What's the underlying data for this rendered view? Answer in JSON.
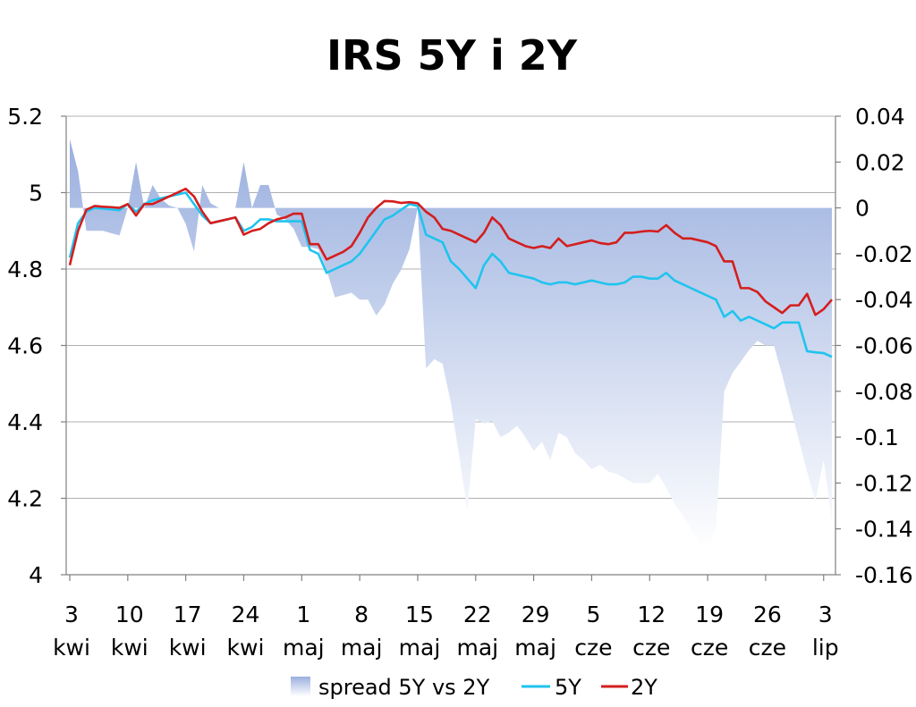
{
  "chart_data": {
    "type": "line",
    "title": "IRS 5Y i 2Y",
    "xlabel": "",
    "ylabel": "",
    "y_left": {
      "min": 4.0,
      "max": 5.2,
      "ticks": [
        "5.2",
        "5",
        "4.8",
        "4.6",
        "4.4",
        "4.2",
        "4"
      ]
    },
    "y_right": {
      "min": -0.16,
      "max": 0.04,
      "ticks": [
        "0.04",
        "0.02",
        "0",
        "-0.02",
        "-0.04",
        "-0.06",
        "-0.08",
        "-0.1",
        "-0.12",
        "-0.14",
        "-0.16"
      ]
    },
    "grid": true,
    "x_ticks": [
      {
        "day": 0,
        "top": "3",
        "bottom": "kwi"
      },
      {
        "day": 7,
        "top": "10",
        "bottom": "kwi"
      },
      {
        "day": 14,
        "top": "17",
        "bottom": "kwi"
      },
      {
        "day": 21,
        "top": "24",
        "bottom": "kwi"
      },
      {
        "day": 28,
        "top": "1",
        "bottom": "maj"
      },
      {
        "day": 35,
        "top": "8",
        "bottom": "maj"
      },
      {
        "day": 42,
        "top": "15",
        "bottom": "maj"
      },
      {
        "day": 49,
        "top": "22",
        "bottom": "maj"
      },
      {
        "day": 56,
        "top": "29",
        "bottom": "maj"
      },
      {
        "day": 63,
        "top": "5",
        "bottom": "cze"
      },
      {
        "day": 70,
        "top": "12",
        "bottom": "cze"
      },
      {
        "day": 77,
        "top": "19",
        "bottom": "cze"
      },
      {
        "day": 84,
        "top": "26",
        "bottom": "cze"
      },
      {
        "day": 91,
        "top": "3",
        "bottom": "lip"
      }
    ],
    "x_range": [
      0,
      92
    ],
    "series": [
      {
        "name": "spread 5Y vs 2Y",
        "axis": "right",
        "kind": "area",
        "color": "#9fb3e0",
        "x": [
          0,
          1,
          2,
          3,
          4,
          5,
          6,
          7,
          8,
          9,
          10,
          11,
          12,
          13,
          14,
          15,
          16,
          17,
          18,
          19,
          20,
          21,
          22,
          23,
          24,
          25,
          26,
          27,
          28,
          29,
          30,
          31,
          32,
          33,
          34,
          35,
          36,
          37,
          38,
          39,
          40,
          41,
          42,
          43,
          44,
          45,
          46,
          47,
          48,
          49,
          50,
          51,
          52,
          53,
          54,
          55,
          56,
          57,
          58,
          59,
          60,
          61,
          62,
          63,
          64,
          65,
          66,
          67,
          68,
          69,
          70,
          71,
          72,
          73,
          74,
          75,
          76,
          77,
          78,
          79,
          80,
          81,
          82,
          83,
          84,
          85,
          86,
          87,
          88,
          89,
          90,
          91,
          92
        ],
        "values": [
          0.03,
          0.016,
          -0.01,
          -0.01,
          -0.01,
          -0.011,
          -0.012,
          0.0,
          0.02,
          0.0,
          0.01,
          0.004,
          0.001,
          0.0,
          -0.007,
          -0.019,
          0.01,
          0.002,
          0.0,
          0.0,
          0.0,
          0.02,
          0.0,
          0.01,
          0.01,
          -0.003,
          -0.005,
          -0.009,
          -0.017,
          -0.017,
          -0.018,
          -0.027,
          -0.039,
          -0.038,
          -0.037,
          -0.04,
          -0.04,
          -0.047,
          -0.042,
          -0.033,
          -0.027,
          -0.018,
          0.0,
          -0.07,
          -0.066,
          -0.068,
          -0.085,
          -0.108,
          -0.132,
          -0.092,
          -0.094,
          -0.093,
          -0.1,
          -0.098,
          -0.095,
          -0.1,
          -0.106,
          -0.102,
          -0.11,
          -0.098,
          -0.1,
          -0.107,
          -0.11,
          -0.114,
          -0.112,
          -0.115,
          -0.116,
          -0.118,
          -0.12,
          -0.12,
          -0.12,
          -0.116,
          -0.122,
          -0.129,
          -0.134,
          -0.14,
          -0.146,
          -0.15,
          -0.14,
          -0.08,
          -0.072,
          -0.067,
          -0.062,
          -0.058,
          -0.06,
          -0.06,
          -0.073,
          -0.087,
          -0.101,
          -0.115,
          -0.128,
          -0.11,
          -0.137
        ]
      },
      {
        "name": "5Y",
        "axis": "left",
        "kind": "line",
        "color": "#1fc4ee",
        "x": [
          0,
          1,
          2,
          3,
          4,
          5,
          6,
          7,
          8,
          9,
          10,
          11,
          12,
          13,
          14,
          15,
          16,
          17,
          18,
          19,
          20,
          21,
          22,
          23,
          24,
          25,
          26,
          27,
          28,
          29,
          30,
          31,
          32,
          33,
          34,
          35,
          36,
          37,
          38,
          39,
          40,
          41,
          42,
          43,
          44,
          45,
          46,
          47,
          48,
          49,
          50,
          51,
          52,
          53,
          54,
          55,
          56,
          57,
          58,
          59,
          60,
          61,
          62,
          63,
          64,
          65,
          66,
          67,
          68,
          69,
          70,
          71,
          72,
          73,
          74,
          75,
          76,
          77,
          78,
          79,
          80,
          81,
          82,
          83,
          84,
          85,
          86,
          87,
          88,
          89,
          90,
          91,
          92
        ],
        "values": [
          4.83,
          4.92,
          4.95,
          4.96,
          4.958,
          4.956,
          4.954,
          4.97,
          4.95,
          4.97,
          4.98,
          4.985,
          4.99,
          4.995,
          5.0,
          4.97,
          4.94,
          4.92,
          4.925,
          4.93,
          4.935,
          4.9,
          4.91,
          4.93,
          4.93,
          4.925,
          4.925,
          4.925,
          4.925,
          4.85,
          4.84,
          4.79,
          4.8,
          4.81,
          4.82,
          4.84,
          4.87,
          4.9,
          4.93,
          4.94,
          4.955,
          4.97,
          4.965,
          4.89,
          4.88,
          4.87,
          4.82,
          4.8,
          4.775,
          4.75,
          4.81,
          4.84,
          4.82,
          4.79,
          4.785,
          4.78,
          4.775,
          4.765,
          4.76,
          4.765,
          4.765,
          4.76,
          4.765,
          4.77,
          4.765,
          4.76,
          4.76,
          4.765,
          4.78,
          4.78,
          4.775,
          4.775,
          4.79,
          4.77,
          4.76,
          4.75,
          4.74,
          4.73,
          4.72,
          4.675,
          4.69,
          4.665,
          4.675,
          4.665,
          4.655,
          4.645,
          4.66,
          4.66,
          4.66,
          4.585,
          4.582,
          4.58,
          4.57
        ]
      },
      {
        "name": "2Y",
        "axis": "left",
        "kind": "line",
        "color": "#d41e1e",
        "x": [
          0,
          1,
          2,
          3,
          4,
          5,
          6,
          7,
          8,
          9,
          10,
          11,
          12,
          13,
          14,
          15,
          16,
          17,
          18,
          19,
          20,
          21,
          22,
          23,
          24,
          25,
          26,
          27,
          28,
          29,
          30,
          31,
          32,
          33,
          34,
          35,
          36,
          37,
          38,
          39,
          40,
          41,
          42,
          43,
          44,
          45,
          46,
          47,
          48,
          49,
          50,
          51,
          52,
          53,
          54,
          55,
          56,
          57,
          58,
          59,
          60,
          61,
          62,
          63,
          64,
          65,
          66,
          67,
          68,
          69,
          70,
          71,
          72,
          73,
          74,
          75,
          76,
          77,
          78,
          79,
          80,
          81,
          82,
          83,
          84,
          85,
          86,
          87,
          88,
          89,
          90,
          91,
          92
        ],
        "values": [
          4.81,
          4.9,
          4.955,
          4.965,
          4.963,
          4.962,
          4.96,
          4.97,
          4.94,
          4.97,
          4.97,
          4.98,
          4.99,
          5.0,
          5.01,
          4.99,
          4.95,
          4.92,
          4.925,
          4.93,
          4.935,
          4.89,
          4.9,
          4.905,
          4.92,
          4.93,
          4.935,
          4.945,
          4.945,
          4.865,
          4.865,
          4.825,
          4.835,
          4.845,
          4.86,
          4.895,
          4.935,
          4.96,
          4.978,
          4.977,
          4.973,
          4.975,
          4.972,
          4.95,
          4.935,
          4.905,
          4.9,
          4.89,
          4.88,
          4.87,
          4.895,
          4.935,
          4.915,
          4.88,
          4.87,
          4.86,
          4.855,
          4.86,
          4.855,
          4.88,
          4.86,
          4.865,
          4.87,
          4.875,
          4.868,
          4.865,
          4.87,
          4.895,
          4.895,
          4.898,
          4.9,
          4.898,
          4.915,
          4.895,
          4.88,
          4.88,
          4.875,
          4.87,
          4.86,
          4.82,
          4.82,
          4.75,
          4.75,
          4.74,
          4.715,
          4.7,
          4.685,
          4.705,
          4.705,
          4.735,
          4.68,
          4.695,
          4.72
        ]
      }
    ],
    "legend": {
      "position": "bottom",
      "items": [
        "spread 5Y vs 2Y",
        "5Y",
        "2Y"
      ]
    }
  }
}
